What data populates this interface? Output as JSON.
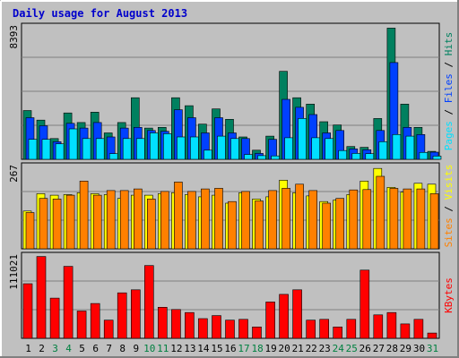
{
  "title": "Daily usage for August 2013",
  "colors": {
    "background": "#c0c0c0",
    "hits": "#00805f",
    "files": "#0040ff",
    "pages": "#00e0ff",
    "visits": "#ffff00",
    "sites": "#ff8000",
    "kbytes": "#ff0000",
    "title": "#0000cc",
    "weekday_label": "#000000",
    "weekend_label": "#008040"
  },
  "chart_data": {
    "type": "bar",
    "categories": [
      "1",
      "2",
      "3",
      "4",
      "5",
      "6",
      "7",
      "8",
      "9",
      "10",
      "11",
      "12",
      "13",
      "14",
      "15",
      "16",
      "17",
      "18",
      "19",
      "20",
      "21",
      "22",
      "23",
      "24",
      "25",
      "26",
      "27",
      "28",
      "29",
      "30",
      "31"
    ],
    "weekend_days": [
      "3",
      "4",
      "10",
      "11",
      "17",
      "18",
      "24",
      "25",
      "31"
    ],
    "panels": [
      {
        "id": "hits-files-pages",
        "max_label": "8393",
        "ymax": 8393,
        "axis_labels": [
          {
            "text": "Pages",
            "color": "#00e0ff"
          },
          {
            "text": " / ",
            "color": "#000000"
          },
          {
            "text": "Files",
            "color": "#0040ff"
          },
          {
            "text": " / ",
            "color": "#000000"
          },
          {
            "text": "Hits",
            "color": "#00805f"
          }
        ],
        "series": [
          {
            "name": "Hits",
            "color": "#00805f",
            "values": [
              3050,
              2450,
              1300,
              2900,
              2300,
              2950,
              1650,
              2300,
              3850,
              1950,
              2000,
              3850,
              3350,
              2200,
              3150,
              2500,
              1400,
              570,
              1450,
              5500,
              3850,
              3450,
              2350,
              2150,
              800,
              750,
              2550,
              8200,
              3450,
              2000,
              500
            ]
          },
          {
            "name": "Files",
            "color": "#0040ff",
            "values": [
              2600,
              2100,
              1100,
              2250,
              1950,
              2300,
              1400,
              1950,
              2000,
              1800,
              1750,
              3100,
              2600,
              1650,
              2600,
              1650,
              1300,
              370,
              1250,
              3750,
              3250,
              2800,
              1650,
              1800,
              650,
              600,
              1800,
              6050,
              2000,
              1550,
              450
            ]
          },
          {
            "name": "Pages",
            "color": "#00e0ff",
            "values": [
              1250,
              1250,
              970,
              1900,
              1300,
              1300,
              350,
              1300,
              1300,
              1650,
              1600,
              1400,
              1400,
              570,
              1450,
              1300,
              300,
              230,
              210,
              1350,
              2550,
              1350,
              1300,
              550,
              370,
              350,
              1100,
              1550,
              1450,
              430,
              200
            ]
          }
        ]
      },
      {
        "id": "visits-sites",
        "max_label": "267",
        "ymax": 267,
        "axis_labels": [
          {
            "text": "Sites",
            "color": "#ff8000"
          },
          {
            "text": " / ",
            "color": "#000000"
          },
          {
            "text": "Visits",
            "color": "#ffff00"
          }
        ],
        "series": [
          {
            "name": "Visits",
            "color": "#ffff00",
            "values": [
              120,
              175,
              170,
              172,
              178,
              175,
              172,
              160,
              170,
              170,
              175,
              178,
              172,
              165,
              170,
              145,
              178,
              158,
              165,
              218,
              178,
              168,
              150,
              155,
              172,
              215,
              255,
              195,
              180,
              208,
              205
            ]
          },
          {
            "name": "Sites",
            "color": "#ff8000",
            "values": [
              115,
              160,
              158,
              170,
              215,
              170,
              185,
              185,
              190,
              158,
              182,
              212,
              182,
              190,
              192,
              150,
              182,
              152,
              185,
              192,
              205,
              185,
              145,
              160,
              187,
              188,
              230,
              192,
              190,
              190,
              175
            ]
          }
        ]
      },
      {
        "id": "kbytes",
        "max_label": "111021",
        "ymax": 111021,
        "axis_labels": [
          {
            "text": "KBytes",
            "color": "#ff0000"
          }
        ],
        "series": [
          {
            "name": "KBytes",
            "color": "#ff0000",
            "values": [
              72000,
              108000,
              53000,
              95000,
              36000,
              46000,
              24000,
              60000,
              64000,
              96000,
              41000,
              38000,
              34000,
              26000,
              30000,
              24000,
              25000,
              15000,
              48000,
              58000,
              64000,
              24000,
              25000,
              15000,
              25000,
              90000,
              31000,
              34000,
              19000,
              25000,
              7000
            ]
          }
        ]
      }
    ]
  }
}
